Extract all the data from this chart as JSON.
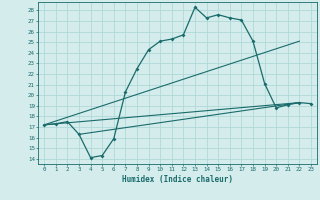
{
  "xlabel": "Humidex (Indice chaleur)",
  "ylabel": "",
  "xlim": [
    -0.5,
    23.5
  ],
  "ylim": [
    13.5,
    28.8
  ],
  "yticks": [
    14,
    15,
    16,
    17,
    18,
    19,
    20,
    21,
    22,
    23,
    24,
    25,
    26,
    27,
    28
  ],
  "xticks": [
    0,
    1,
    2,
    3,
    4,
    5,
    6,
    7,
    8,
    9,
    10,
    11,
    12,
    13,
    14,
    15,
    16,
    17,
    18,
    19,
    20,
    21,
    22,
    23
  ],
  "bg_color": "#d4ecec",
  "line_color": "#1a6b6b",
  "grid_color": "#b0d8d8",
  "main_curve_x": [
    0,
    1,
    2,
    3,
    4,
    5,
    6,
    7,
    8,
    9,
    10,
    11,
    12,
    13,
    14,
    15,
    16,
    17,
    18,
    19,
    20,
    21,
    22,
    23
  ],
  "main_curve_y": [
    17.2,
    17.3,
    17.5,
    16.3,
    14.1,
    14.3,
    15.9,
    20.3,
    22.5,
    24.3,
    25.1,
    25.3,
    25.7,
    28.3,
    27.3,
    27.6,
    27.3,
    27.1,
    25.1,
    21.1,
    18.8,
    19.1,
    19.3,
    19.2
  ],
  "diag_line1_x": [
    0,
    22
  ],
  "diag_line1_y": [
    17.2,
    25.1
  ],
  "diag_line2_x": [
    3,
    22
  ],
  "diag_line2_y": [
    16.3,
    19.3
  ],
  "diag_line3_x": [
    0,
    22
  ],
  "diag_line3_y": [
    17.2,
    19.3
  ]
}
